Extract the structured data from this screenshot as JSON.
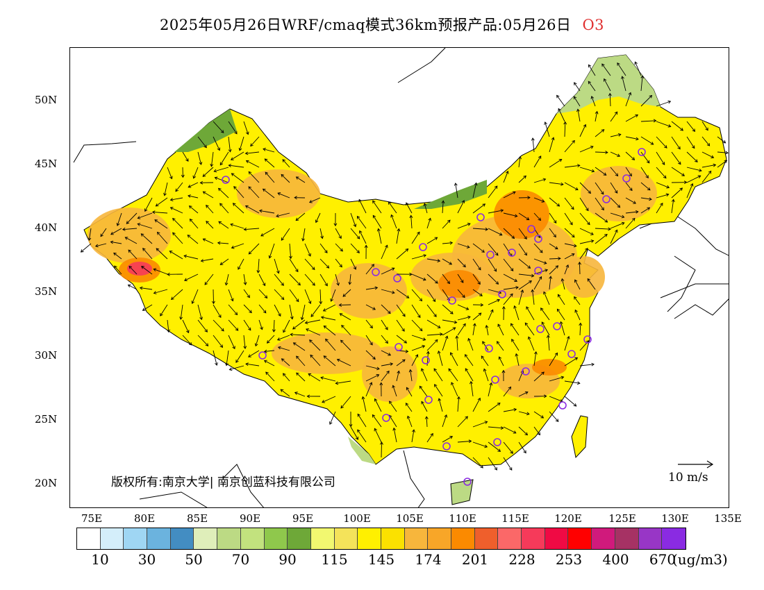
{
  "title": {
    "text": "2025年05月26日WRF/cmaq模式36km预报产品:05月26日",
    "species": "O3"
  },
  "axes": {
    "lat_labels": [
      "50N",
      "45N",
      "40N",
      "35N",
      "30N",
      "25N",
      "20N"
    ],
    "lon_labels": [
      "75E",
      "80E",
      "85E",
      "90E",
      "95E",
      "100E",
      "105E",
      "110E",
      "115E",
      "120E",
      "125E",
      "130E",
      "135E"
    ]
  },
  "copyright": "版权所有:南京大学| 南京创蓝科技有限公司",
  "wind_reference": "10 m/s",
  "colorbar": {
    "unit": "(ug/m3)",
    "colors": [
      "#ffffff",
      "#d4eefa",
      "#9fd6f3",
      "#6bb3de",
      "#438dc2",
      "#dfeeba",
      "#bcda84",
      "#c2e27e",
      "#8fc84c",
      "#6ea838",
      "#f2f870",
      "#f4e35a",
      "#fff000",
      "#fbe100",
      "#f7b63c",
      "#f8a628",
      "#fb8a00",
      "#ef5f2c",
      "#fb6868",
      "#f63a5a",
      "#f00a44",
      "#ff0000",
      "#d01a7c",
      "#a63264",
      "#9836c6",
      "#8a2be2"
    ],
    "labels": [
      "10",
      "30",
      "50",
      "70",
      "90",
      "115",
      "145",
      "174",
      "201",
      "228",
      "253",
      "400",
      "670"
    ]
  },
  "map_colors": {
    "land": "#fff000",
    "ocean": "#ffffff",
    "hotspot": "#f7b63c",
    "strong": "#fb8a00",
    "peak": "#f63a5a",
    "green": "#bcda84",
    "dark_green": "#6ea838",
    "station": "#8a2be2"
  }
}
